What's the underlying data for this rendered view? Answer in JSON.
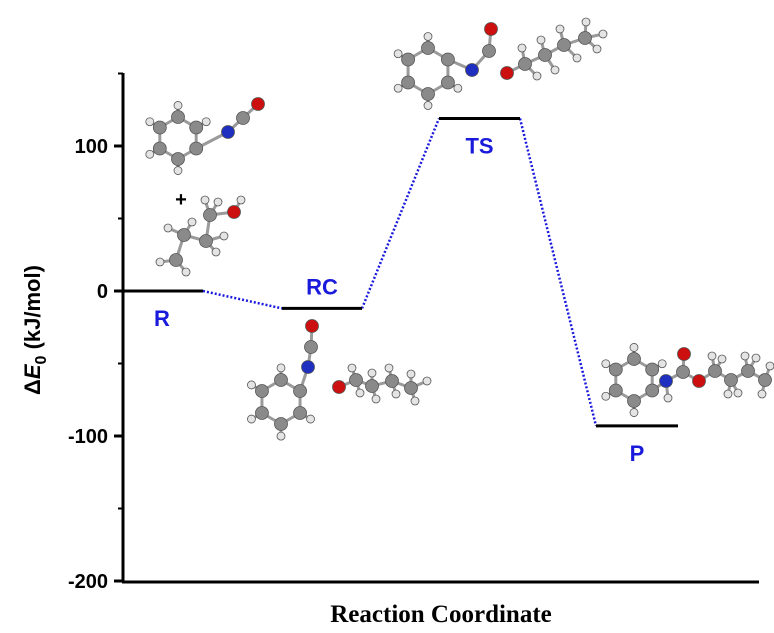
{
  "chart_data": {
    "type": "line",
    "title": "",
    "xlabel": "Reaction Coordinate",
    "ylabel": {
      "delta": "Δ",
      "symbol": "E",
      "subscript": "0",
      "unit": " (kJ/mol)"
    },
    "ylim": [
      -200,
      150
    ],
    "yticks": [
      -200,
      -100,
      0,
      100
    ],
    "grid": false,
    "legend": "none",
    "level_color": "#000000",
    "connector_color": "#1a1adc",
    "label_color": "#1a1adc",
    "states": [
      {
        "label": "R",
        "energy": 0,
        "label_side": "below"
      },
      {
        "label": "RC",
        "energy": -12,
        "label_side": "above"
      },
      {
        "label": "TS",
        "energy": 119,
        "label_side": "below"
      },
      {
        "label": "P",
        "energy": -93,
        "label_side": "below"
      }
    ],
    "annotations": [
      {
        "text": "+",
        "note_type": "plus-sign"
      }
    ],
    "molecule_images": [
      {
        "name": "phenyl-isocyanate-molecule",
        "atoms": "C,H,N,O"
      },
      {
        "name": "butanol-molecule",
        "atoms": "C,H,O"
      },
      {
        "name": "reactant-complex-molecule",
        "atoms": "C,H,N,O"
      },
      {
        "name": "transition-state-molecule",
        "atoms": "C,H,N,O"
      },
      {
        "name": "product-carbamate-molecule",
        "atoms": "C,H,N,O"
      }
    ],
    "atom_colors": {
      "C": "#8a8a8a",
      "H": "#e4e4e4",
      "N": "#1f2fbf",
      "O": "#cc1010"
    }
  }
}
